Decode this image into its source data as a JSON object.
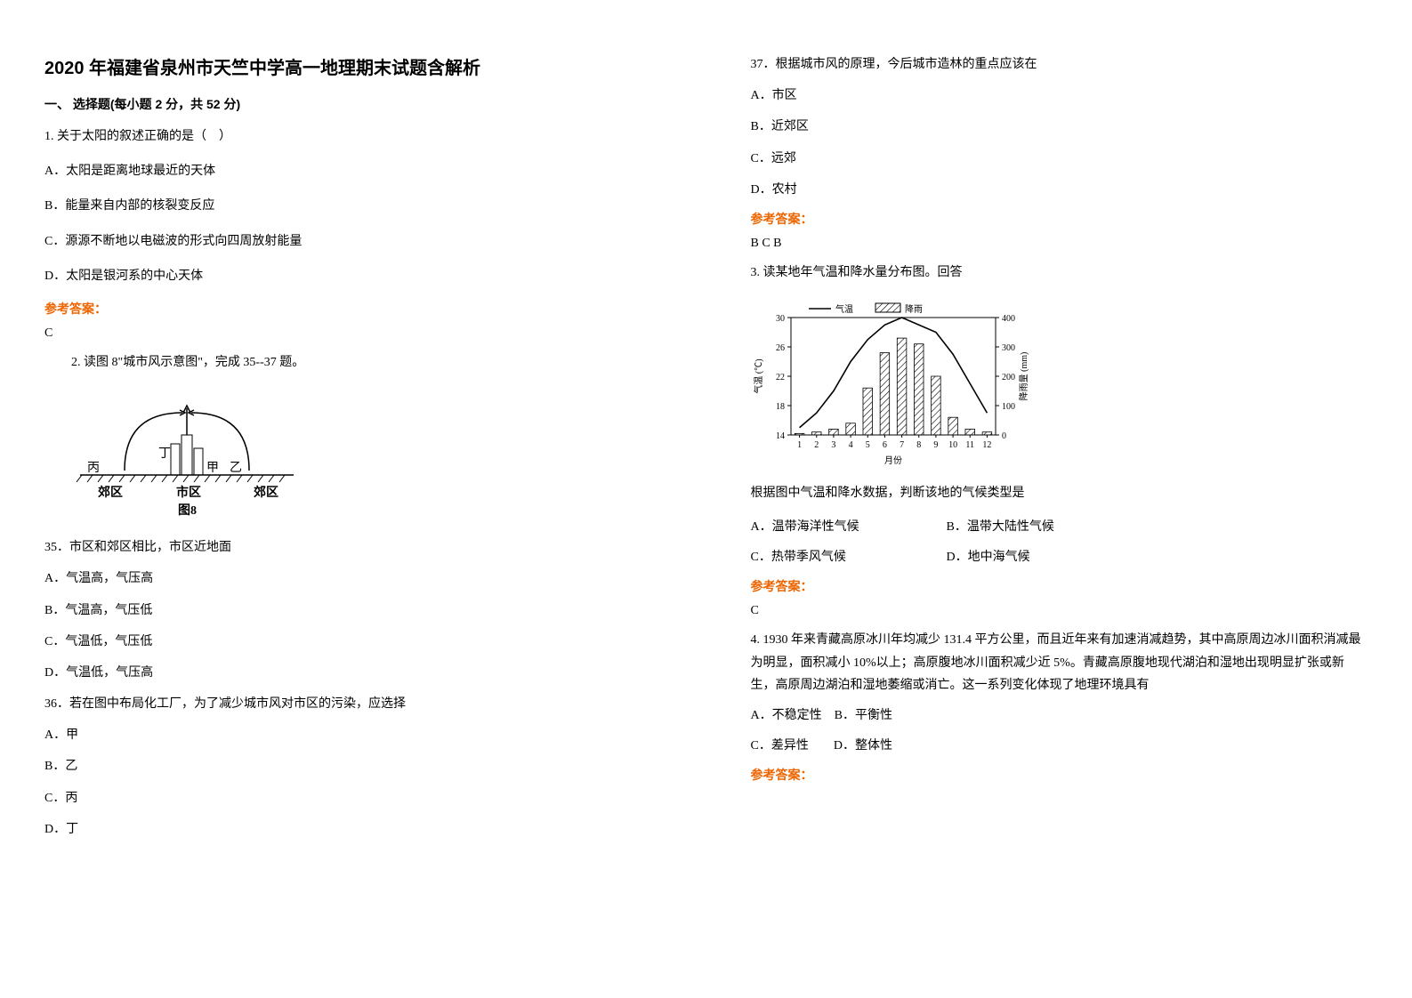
{
  "title": "2020 年福建省泉州市天竺中学高一地理期末试题含解析",
  "section1": "一、 选择题(每小题 2 分，共 52 分)",
  "q1": {
    "stem": "1. 关于太阳的叙述正确的是（　）",
    "A": "A．太阳是距离地球最近的天体",
    "B": "B．能量来自内部的核裂变反应",
    "C": "C．源源不断地以电磁波的形式向四周放射能量",
    "D": "D．太阳是银河系的中心天体",
    "answerLabel": "参考答案：",
    "answer": "C"
  },
  "q2": {
    "stem": "2. 读图 8\"城市风示意图\"，完成 35--37 题。",
    "fig": {
      "left_label": "丙",
      "center_label": "丁",
      "right_label": "乙",
      "inner_left": "郊区",
      "inner_center": "市区",
      "inner_right": "郊区",
      "caption": "图8",
      "jia": "甲",
      "colors": {
        "line": "#000000",
        "hatch": "#000000"
      }
    },
    "sq35": {
      "stem": "35．市区和郊区相比，市区近地面",
      "A": "A．气温高，气压高",
      "B": "B．气温高，气压低",
      "C": "C．气温低，气压低",
      "D": "D．气温低，气压高"
    },
    "sq36": {
      "stem": "36．若在图中布局化工厂，为了减少城市风对市区的污染，应选择",
      "A": "A．甲",
      "B": "B．乙",
      "C": "C．丙",
      "D": "D．丁"
    },
    "sq37": {
      "stem": "37．根据城市风的原理，今后城市造林的重点应该在",
      "A": "A．市区",
      "B": "B．近郊区",
      "C": "C．远郊",
      "D": "D．农村"
    },
    "answerLabel": "参考答案：",
    "answer": "B C B"
  },
  "q3": {
    "stem": "3. 读某地年气温和降水量分布图。回答",
    "chart": {
      "type": "combo",
      "legend": {
        "temp": "气温",
        "rain": "降雨"
      },
      "x_label": "月份",
      "y_left_label": "气温 (℃)",
      "y_right_label": "降雨量 (mm)",
      "months": [
        "1",
        "2",
        "3",
        "4",
        "5",
        "6",
        "7",
        "8",
        "9",
        "10",
        "11",
        "12"
      ],
      "temp_values": [
        15,
        17,
        20,
        24,
        27,
        29,
        30,
        29,
        28,
        25,
        21,
        17
      ],
      "rain_values": [
        5,
        10,
        20,
        40,
        160,
        280,
        330,
        310,
        200,
        60,
        20,
        10
      ],
      "y_left_ticks": [
        14,
        18,
        22,
        26,
        30
      ],
      "y_right_ticks": [
        0,
        100,
        200,
        300,
        400
      ],
      "line_color": "#000000",
      "bar_color": "#ffffff",
      "bar_border": "#000000",
      "bar_hatch": true,
      "title_fontsize": 12,
      "axis_fontsize": 10
    },
    "sub_stem": "根据图中气温和降水数据，判断该地的气候类型是",
    "A": "A．温带海洋性气候",
    "B": "B．温带大陆性气候",
    "C": "C．热带季风气候",
    "D": "D．地中海气候",
    "answerLabel": "参考答案：",
    "answer": "C"
  },
  "q4": {
    "stem": "4. 1930 年来青藏高原冰川年均减少 131.4 平方公里，而且近年来有加速消减趋势，其中高原周边冰川面积消减最为明显，面积减小 10%以上；高原腹地冰川面积减少近 5%。青藏高原腹地现代湖泊和湿地出现明显扩张或新生，高原周边湖泊和湿地萎缩或消亡。这一系列变化体现了地理环境具有",
    "optsAB": "A．不稳定性　B．平衡性",
    "optsCD": "C．差异性　　D．整体性",
    "answerLabel": "参考答案："
  }
}
